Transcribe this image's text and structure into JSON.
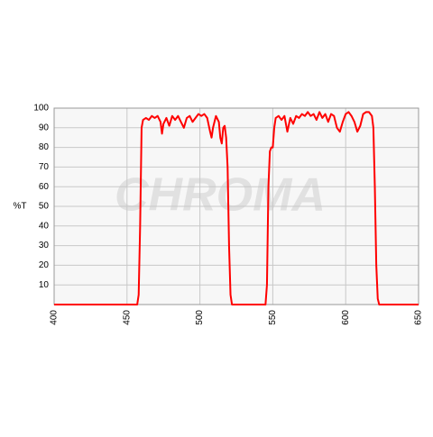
{
  "chart_data": {
    "type": "line",
    "ylabel": "%T",
    "watermark": "CHROMA",
    "x": [
      400,
      457,
      458,
      459,
      460,
      461,
      463,
      465,
      467,
      469,
      471,
      473,
      474,
      475,
      477,
      479,
      481,
      483,
      485,
      487,
      489,
      491,
      493,
      495,
      497,
      499,
      501,
      503,
      505,
      507,
      508,
      509,
      511,
      513,
      514,
      515,
      516,
      517,
      518,
      519,
      520,
      521,
      522,
      545,
      546,
      547,
      548,
      549,
      550,
      551,
      552,
      554,
      556,
      558,
      560,
      562,
      564,
      566,
      568,
      570,
      572,
      574,
      576,
      578,
      580,
      582,
      584,
      586,
      588,
      590,
      592,
      594,
      596,
      598,
      600,
      602,
      604,
      606,
      608,
      610,
      612,
      614,
      616,
      618,
      619,
      620,
      621,
      622,
      623,
      650
    ],
    "series": [
      {
        "color": "#ff0000",
        "values": [
          0,
          0,
          5,
          40,
          90,
          94,
          95,
          94,
          96,
          95,
          96,
          93,
          87,
          92,
          95,
          91,
          96,
          94,
          96,
          93,
          90,
          95,
          96,
          93,
          95,
          97,
          96,
          97,
          95,
          88,
          85,
          90,
          96,
          93,
          85,
          82,
          90,
          91,
          85,
          70,
          30,
          5,
          0,
          0,
          10,
          60,
          78,
          80,
          80,
          90,
          95,
          96,
          94,
          96,
          88,
          95,
          92,
          96,
          95,
          97,
          96,
          98,
          96,
          97,
          94,
          98,
          95,
          97,
          93,
          97,
          96,
          90,
          88,
          93,
          97,
          98,
          96,
          93,
          88,
          91,
          97,
          98,
          98,
          96,
          90,
          60,
          20,
          3,
          0,
          0
        ]
      }
    ],
    "xlim": [
      400,
      650
    ],
    "xticks": [
      400,
      450,
      500,
      550,
      600,
      650
    ],
    "ylim": [
      0,
      100
    ],
    "yticks": [
      10,
      20,
      30,
      40,
      50,
      60,
      70,
      80,
      90,
      100
    ],
    "grid": true
  }
}
